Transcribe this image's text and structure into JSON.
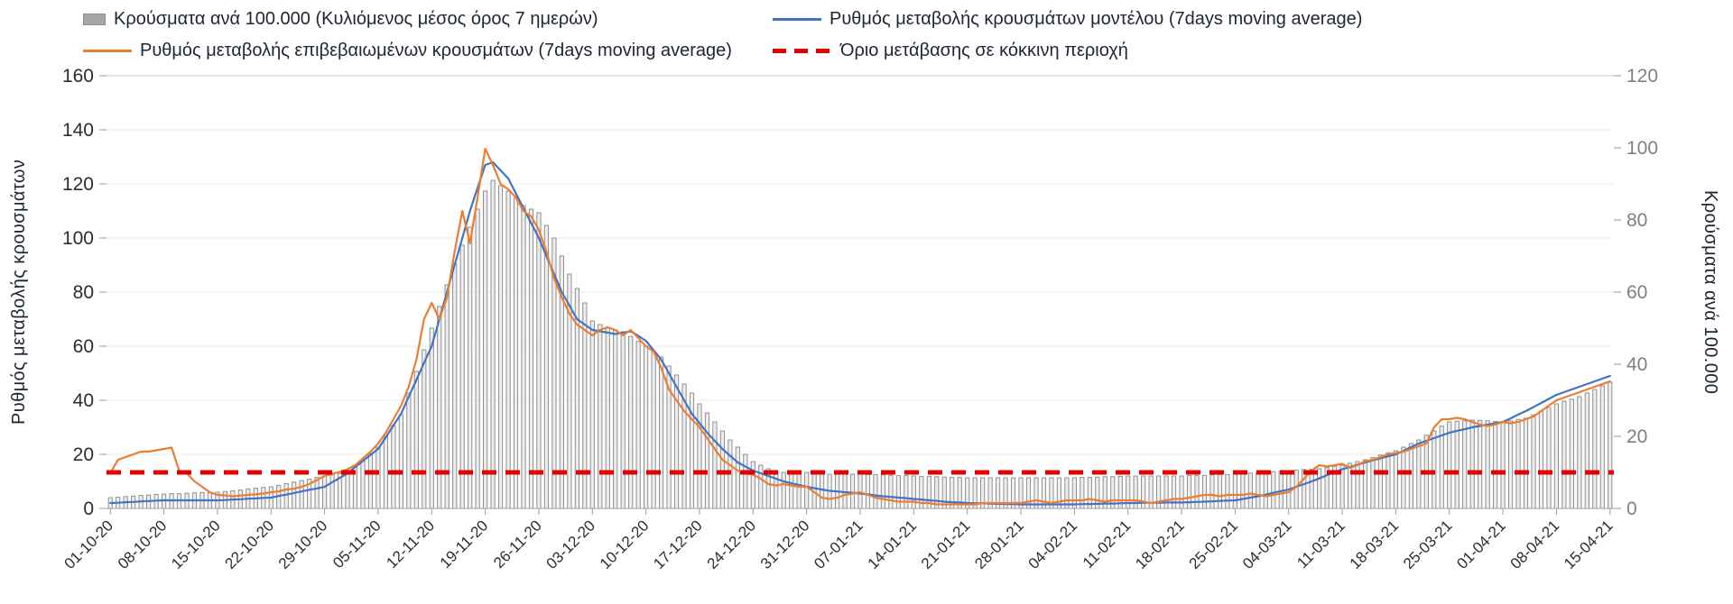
{
  "axes": {
    "left_label": "Ρυθμός μεταβολής κρουσμάτων",
    "right_label": "Κρούσματα ανά 100.000"
  },
  "colors": {
    "bar_fill": "#ededed",
    "bar_stroke": "#8f8f8f",
    "model_line": "#4472C4",
    "confirmed_line": "#ED7D31",
    "threshold": "#E30000",
    "grid": "#ececec",
    "axis": "#9e9e9e"
  },
  "chart_data": {
    "type": "combo-bar-line",
    "x_is_daily": true,
    "x_tick_every": 7,
    "x_tick_labels": [
      "01-10-20",
      "08-10-20",
      "15-10-20",
      "22-10-20",
      "29-10-20",
      "05-11-20",
      "12-11-20",
      "19-11-20",
      "26-11-20",
      "03-12-20",
      "10-12-20",
      "17-12-20",
      "24-12-20",
      "31-12-20",
      "07-01-21",
      "14-01-21",
      "21-01-21",
      "28-01-21",
      "04-02-21",
      "11-02-21",
      "18-02-21",
      "25-02-21",
      "04-03-21",
      "11-03-21",
      "18-03-21",
      "25-03-21",
      "01-04-21",
      "08-04-21",
      "15-04-21"
    ],
    "ylim_left": [
      0,
      160
    ],
    "ylim_right": [
      0,
      120
    ],
    "left_ticks": [
      0,
      20,
      40,
      60,
      80,
      100,
      120,
      140,
      160
    ],
    "right_ticks": [
      0,
      20,
      40,
      60,
      80,
      100,
      120
    ],
    "bar_series": {
      "name": "Κρούσματα ανά 100.000 (Κυλιόμενος μέσος όρος 7 ημερών)",
      "type": "bar",
      "axis": "right",
      "values": [
        3,
        3.1,
        3.3,
        3.4,
        3.6,
        3.7,
        3.9,
        4,
        4.1,
        4.1,
        4.2,
        4.3,
        4.4,
        4.4,
        4.5,
        4.7,
        4.9,
        5.1,
        5.4,
        5.6,
        5.8,
        6,
        6.4,
        6.9,
        7.3,
        7.7,
        8.1,
        8.6,
        9,
        9.3,
        9.7,
        10,
        11.8,
        13.5,
        15.3,
        17,
        20,
        23,
        26,
        32,
        38,
        44,
        50,
        56,
        62,
        68,
        73,
        78,
        83,
        88,
        91,
        89.5,
        88,
        86,
        84,
        83,
        82,
        78.5,
        75,
        70,
        65,
        61,
        57,
        52,
        51,
        50,
        49.5,
        49,
        47.7,
        46.3,
        45,
        43.5,
        42,
        39.5,
        37,
        34.5,
        32,
        29,
        26.5,
        24,
        21.5,
        19,
        17,
        15,
        13,
        12,
        11,
        10.5,
        10,
        10,
        10,
        10,
        9.8,
        9.7,
        9.5,
        9.5,
        9.5,
        9.5,
        9.5,
        9.4,
        9.4,
        9.3,
        9.2,
        9.1,
        9.1,
        9,
        8.9,
        8.9,
        8.8,
        8.7,
        8.6,
        8.6,
        8.5,
        8.5,
        8.5,
        8.5,
        8.5,
        8.5,
        8.5,
        8.5,
        8.5,
        8.5,
        8.5,
        8.5,
        8.5,
        8.5,
        8.5,
        8.6,
        8.6,
        8.7,
        8.8,
        8.8,
        8.9,
        9,
        9,
        9,
        9,
        9,
        9,
        9,
        9,
        9.1,
        9.1,
        9.2,
        9.3,
        9.4,
        9.4,
        9.5,
        9.6,
        9.8,
        9.9,
        10.1,
        10.2,
        10.4,
        10.5,
        10.6,
        10.8,
        10.9,
        11,
        11.3,
        11.7,
        12,
        12.5,
        13,
        13.5,
        14.1,
        14.8,
        15.4,
        16,
        17,
        18,
        19,
        20.3,
        21.5,
        22.8,
        24,
        24.2,
        24.3,
        24.5,
        24.4,
        24.3,
        24.1,
        24,
        24.3,
        24.7,
        25,
        26,
        27,
        28,
        29,
        29.7,
        30.3,
        31,
        32,
        33,
        34,
        35
      ]
    },
    "line_series": [
      {
        "name": "Ρυθμός μεταβολής κρουσμάτων μοντέλου (7days moving average)",
        "type": "line",
        "axis": "left",
        "color_key": "model_line",
        "values": [
          2,
          2.1,
          2.3,
          2.4,
          2.6,
          2.7,
          2.9,
          3,
          3,
          3,
          3,
          3,
          3,
          3,
          3,
          3.1,
          3.3,
          3.4,
          3.6,
          3.7,
          3.9,
          4,
          4.6,
          5.1,
          5.7,
          6.3,
          6.9,
          7.4,
          8,
          9.7,
          11.3,
          13,
          15.3,
          17.5,
          19.8,
          22,
          26.3,
          30.7,
          35,
          41.3,
          47.5,
          53.8,
          60,
          70,
          80,
          90,
          100,
          110,
          118.5,
          127,
          128,
          125,
          122,
          116.5,
          111,
          105.5,
          100,
          93.3,
          86.7,
          80,
          75,
          70,
          68,
          66,
          65.5,
          65,
          64.5,
          65,
          65.5,
          63.8,
          62,
          58.5,
          55,
          50,
          45,
          40,
          35,
          31.5,
          28,
          25,
          22,
          19.5,
          17,
          15.5,
          14,
          13,
          12,
          11,
          10,
          9.3,
          8.7,
          8,
          7.5,
          7,
          6.5,
          6.3,
          6,
          5.8,
          5.5,
          5.2,
          4.8,
          4.5,
          4.3,
          4,
          3.8,
          3.5,
          3.3,
          3,
          2.8,
          2.5,
          2.3,
          2.2,
          2,
          1.9,
          1.9,
          1.8,
          1.7,
          1.6,
          1.6,
          1.5,
          1.5,
          1.5,
          1.5,
          1.5,
          1.5,
          1.5,
          1.5,
          1.6,
          1.6,
          1.7,
          1.8,
          1.8,
          1.9,
          2,
          2,
          2.1,
          2.1,
          2.1,
          2.2,
          2.2,
          2.2,
          2.3,
          2.4,
          2.5,
          2.6,
          2.8,
          2.9,
          3,
          3.5,
          4,
          4.5,
          5.1,
          5.8,
          6.4,
          7,
          8,
          9,
          10,
          11.1,
          12.3,
          13.4,
          14.5,
          15.3,
          16.2,
          17,
          17.8,
          18.5,
          19.3,
          20,
          21.3,
          22.7,
          24,
          25,
          26,
          27,
          28,
          28.7,
          29.3,
          30,
          30.5,
          31,
          31.5,
          32,
          33.3,
          34.7,
          36,
          37.5,
          39,
          40.5,
          42,
          43,
          44,
          45,
          46,
          47,
          48,
          49
        ]
      },
      {
        "name": "Ρυθμός μεταβολής επιβεβαιωμένων κρουσμάτων (7days moving average)",
        "type": "line",
        "axis": "left",
        "color_key": "confirmed_line",
        "values": [
          13,
          18,
          19,
          20,
          21,
          21,
          21.5,
          22,
          22.5,
          14,
          13,
          10,
          8,
          6,
          5,
          4.8,
          4.5,
          4.8,
          5,
          5.2,
          5.5,
          6,
          6.3,
          7,
          7.3,
          8,
          9,
          10.5,
          12,
          12.8,
          13.5,
          14.5,
          16,
          18.5,
          21,
          24,
          28,
          33,
          38,
          45,
          55,
          70,
          76,
          70,
          78,
          95,
          110,
          98,
          115,
          133,
          127,
          120,
          118,
          115,
          110,
          108,
          103,
          95,
          85,
          78,
          72,
          68,
          66,
          64,
          66,
          67,
          66,
          64,
          66,
          63,
          60,
          58,
          52,
          44,
          40,
          36,
          33,
          30,
          26,
          22,
          18,
          16,
          14,
          13,
          12.5,
          11,
          9,
          8.5,
          9,
          8.5,
          8,
          8,
          6,
          4,
          3.5,
          4,
          5,
          5.5,
          6,
          5,
          4,
          3.5,
          3,
          2.5,
          2.5,
          2.5,
          2,
          2,
          1.5,
          1.5,
          1.5,
          1.5,
          1.5,
          1.5,
          2,
          2,
          2,
          2,
          2,
          2,
          2.5,
          3,
          2.5,
          2,
          2.5,
          3,
          3,
          3,
          3.5,
          3,
          2.5,
          3,
          3,
          3,
          3,
          2.5,
          2,
          2.5,
          3,
          3.5,
          3.5,
          4,
          4.5,
          5,
          5,
          4.5,
          5,
          5,
          5,
          5.5,
          5,
          4.5,
          5,
          5.5,
          6,
          8,
          11,
          14,
          16,
          15.5,
          16,
          16.5,
          15,
          16,
          17.5,
          18,
          19,
          20,
          20.5,
          21,
          22,
          23,
          24,
          30,
          33,
          33,
          33.5,
          33,
          32,
          31,
          30.5,
          31,
          32,
          31.5,
          32,
          33,
          34,
          36,
          38,
          40,
          41,
          42,
          43,
          44,
          45,
          46,
          47
        ]
      }
    ],
    "threshold": {
      "name": "Όριο μετάβασης σε κόκκινη περιοχή",
      "type": "threshold-line",
      "axis": "left",
      "value": 13.33
    }
  }
}
